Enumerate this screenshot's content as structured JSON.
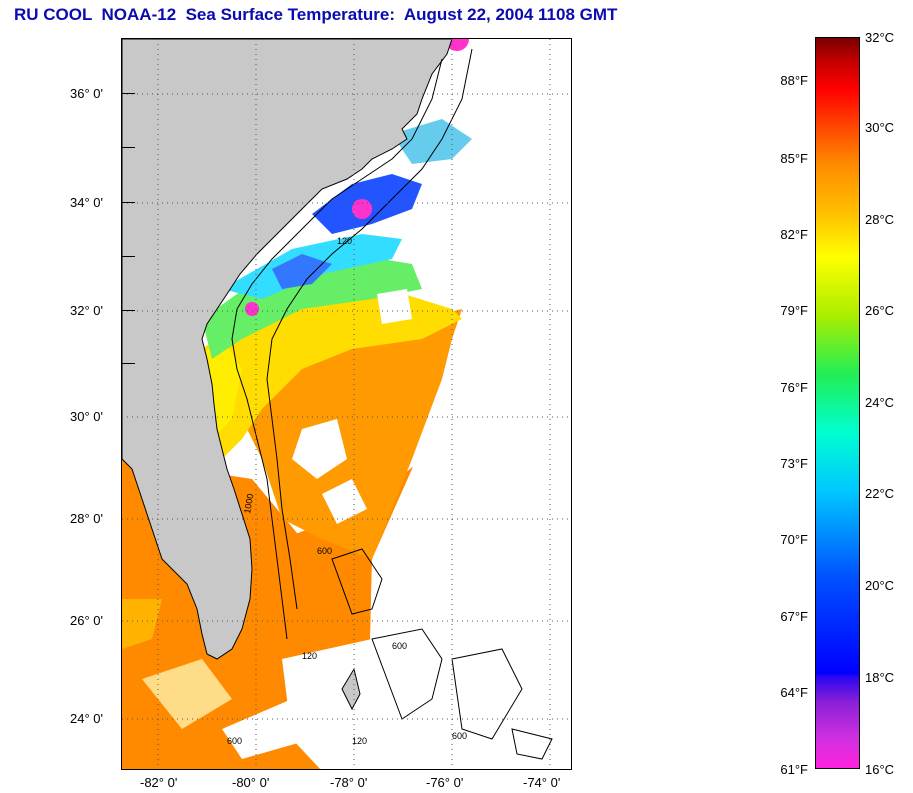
{
  "title": "RU COOL  NOAA-12  Sea Surface Temperature:  August 22, 2004 1108 GMT",
  "colors": {
    "title": "#0b0bb0",
    "land": "#c8c8c8",
    "orange": "#ff8a00",
    "yellow_orange": "#ffc000",
    "yellow": "#ffee00",
    "green": "#66ee44",
    "cyan": "#33ddff",
    "blue": "#2255ff",
    "magenta": "#ff33cc",
    "cloud": "#ffffff"
  },
  "map": {
    "lat_labels": [
      "36° 0'",
      "34° 0'",
      "32° 0'",
      "30° 0'",
      "28° 0'",
      "26° 0'",
      "24° 0'"
    ],
    "lon_labels": [
      "-82° 0'",
      "-80° 0'",
      "-78° 0'",
      "-76° 0'",
      "-74° 0'"
    ],
    "contour_labels": [
      "120",
      "1000",
      "600",
      "600",
      "120",
      "120",
      "600",
      "600"
    ]
  },
  "colorbar": {
    "fahrenheit": [
      "88°F",
      "85°F",
      "82°F",
      "79°F",
      "76°F",
      "73°F",
      "70°F",
      "67°F",
      "64°F",
      "61°F"
    ],
    "celsius": [
      "32°C",
      "30°C",
      "28°C",
      "26°C",
      "24°C",
      "22°C",
      "20°C",
      "18°C",
      "16°C"
    ]
  }
}
